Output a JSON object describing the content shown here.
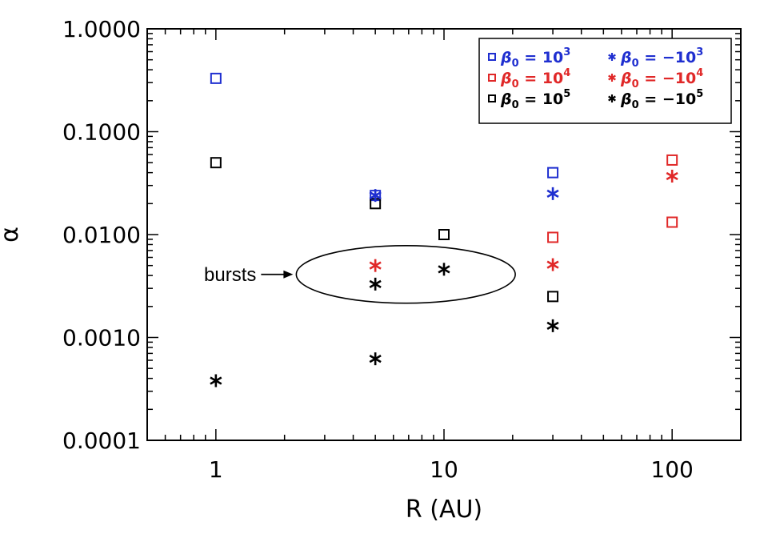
{
  "chart_data": {
    "type": "scatter",
    "title": "",
    "xlabel": "R (AU)",
    "ylabel": "α",
    "xscale": "log",
    "yscale": "log",
    "xlim": [
      0.5,
      200
    ],
    "ylim": [
      0.0001,
      1.0
    ],
    "x_ticks": [
      1,
      10,
      100
    ],
    "x_tick_labels": [
      "1",
      "10",
      "100"
    ],
    "y_ticks": [
      0.0001,
      0.001,
      0.01,
      0.1,
      1.0
    ],
    "y_tick_labels": [
      "0.0001",
      "0.0010",
      "0.0100",
      "0.1000",
      "1.0000"
    ],
    "grid": false,
    "legend_placement": "top-right",
    "colors": {
      "blue": "#1f2fd0",
      "red": "#e02828",
      "black": "#000000"
    },
    "series": [
      {
        "name": "β0 = 10^3",
        "marker": "square",
        "color": "blue",
        "x": [
          1,
          5,
          30
        ],
        "y": [
          0.33,
          0.024,
          0.04
        ]
      },
      {
        "name": "β0 = 10^4",
        "marker": "square",
        "color": "red",
        "x": [
          30,
          100,
          100
        ],
        "y": [
          0.0094,
          0.053,
          0.0132
        ]
      },
      {
        "name": "β0 = 10^5",
        "marker": "square",
        "color": "black",
        "x": [
          1,
          5,
          10,
          30
        ],
        "y": [
          0.05,
          0.02,
          0.01,
          0.0025
        ]
      },
      {
        "name": "β0 = −10^3",
        "marker": "asterisk",
        "color": "blue",
        "x": [
          5,
          30
        ],
        "y": [
          0.024,
          0.025
        ]
      },
      {
        "name": "β0 = −10^4",
        "marker": "asterisk",
        "color": "red",
        "x": [
          5,
          30,
          100
        ],
        "y": [
          0.005,
          0.0051,
          0.037
        ]
      },
      {
        "name": "β0 = −10^5",
        "marker": "asterisk",
        "color": "black",
        "x": [
          1,
          5,
          5,
          10,
          30
        ],
        "y": [
          0.00038,
          0.00062,
          0.0033,
          0.0046,
          0.0013
        ]
      }
    ],
    "legend": [
      {
        "marker": "square",
        "color": "blue",
        "beta": "β",
        "sub": "0",
        "eq": " = ",
        "base": "10",
        "exp": "3"
      },
      {
        "marker": "asterisk",
        "color": "blue",
        "beta": "β",
        "sub": "0",
        "eq": " = ",
        "base": "−10",
        "exp": "3"
      },
      {
        "marker": "square",
        "color": "red",
        "beta": "β",
        "sub": "0",
        "eq": " = ",
        "base": "10",
        "exp": "4"
      },
      {
        "marker": "asterisk",
        "color": "red",
        "beta": "β",
        "sub": "0",
        "eq": " = ",
        "base": "−10",
        "exp": "4"
      },
      {
        "marker": "square",
        "color": "black",
        "beta": "β",
        "sub": "0",
        "eq": " = ",
        "base": "10",
        "exp": "5"
      },
      {
        "marker": "asterisk",
        "color": "black",
        "beta": "β",
        "sub": "0",
        "eq": " = ",
        "base": "−10",
        "exp": "5"
      }
    ],
    "annotations": [
      {
        "text": "bursts",
        "ellipse_center": [
          6.8,
          0.0041
        ],
        "ellipse_rx_decades": 0.48,
        "ellipse_ry_decades": 0.28
      }
    ]
  }
}
